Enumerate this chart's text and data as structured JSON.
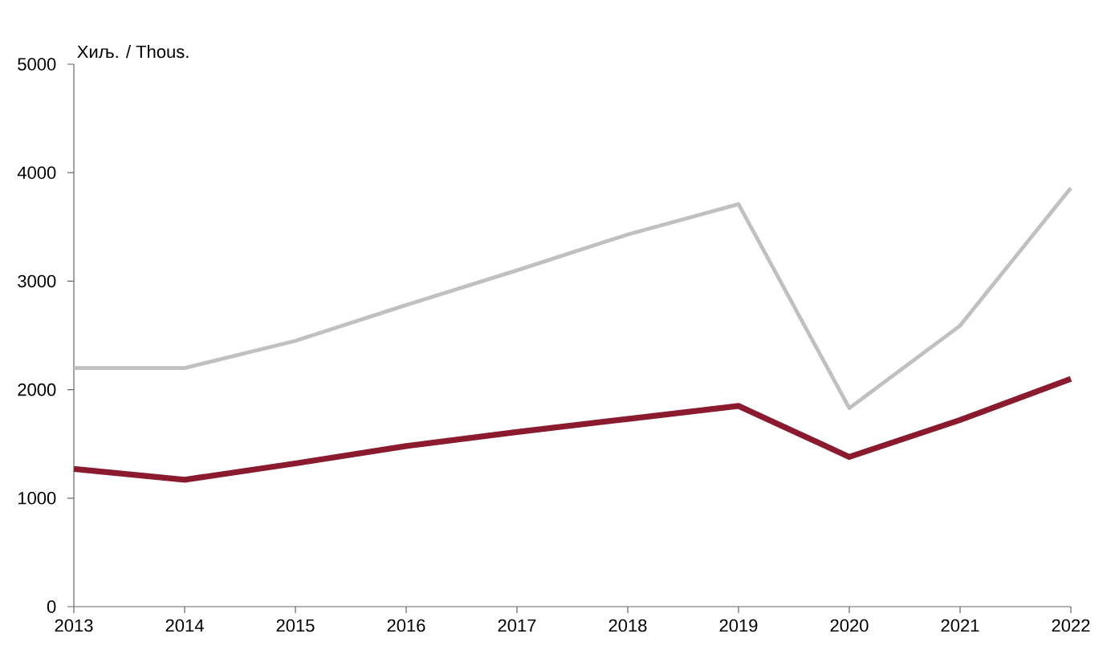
{
  "chart_data": {
    "type": "line",
    "ylabel": "Хиљ. / Thous.",
    "categories": [
      "2013",
      "2014",
      "2015",
      "2016",
      "2017",
      "2018",
      "2019",
      "2020",
      "2021",
      "2022"
    ],
    "series": [
      {
        "color": "#c0c0c0",
        "values": [
          2200,
          2200,
          2450,
          2780,
          3100,
          3430,
          3710,
          1830,
          2590,
          3860
        ]
      },
      {
        "color": "#8b1a2e",
        "values": [
          1270,
          1170,
          1320,
          1480,
          1610,
          1730,
          1850,
          1380,
          1720,
          2100
        ]
      }
    ],
    "ylim": [
      0,
      5000
    ],
    "yticks": [
      0,
      1000,
      2000,
      3000,
      4000,
      5000
    ],
    "grid": false,
    "marker": "none",
    "line_style": "solid"
  }
}
